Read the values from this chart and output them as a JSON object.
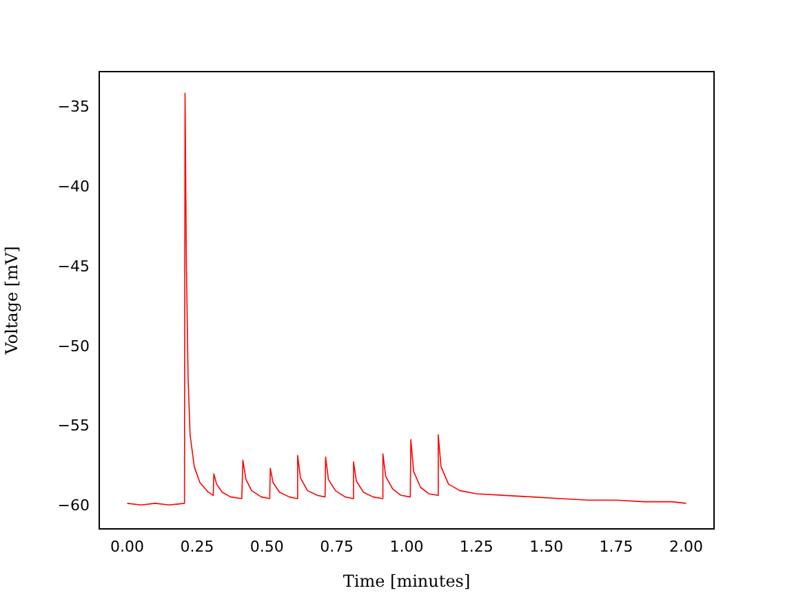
{
  "chart_data": {
    "type": "line",
    "xlabel": "Time [minutes]",
    "ylabel": "Voltage [mV]",
    "x": [
      0.0,
      0.05,
      0.1,
      0.15,
      0.205,
      0.207,
      0.212,
      0.218,
      0.225,
      0.24,
      0.26,
      0.29,
      0.308,
      0.31,
      0.32,
      0.34,
      0.37,
      0.41,
      0.414,
      0.425,
      0.445,
      0.48,
      0.51,
      0.512,
      0.522,
      0.545,
      0.58,
      0.608,
      0.61,
      0.62,
      0.645,
      0.68,
      0.708,
      0.71,
      0.72,
      0.745,
      0.78,
      0.808,
      0.81,
      0.82,
      0.845,
      0.88,
      0.913,
      0.915,
      0.925,
      0.95,
      0.98,
      1.013,
      1.015,
      1.025,
      1.05,
      1.08,
      1.111,
      1.113,
      1.123,
      1.15,
      1.19,
      1.25,
      1.35,
      1.45,
      1.55,
      1.65,
      1.75,
      1.85,
      1.95,
      2.0
    ],
    "series": [
      {
        "color": "#ff0000",
        "values": [
          -59.8,
          -59.9,
          -59.8,
          -59.9,
          -59.8,
          -34.1,
          -45,
          -52,
          -55.5,
          -57.5,
          -58.5,
          -59.1,
          -59.3,
          -57.95,
          -58.6,
          -59.1,
          -59.4,
          -59.5,
          -57.1,
          -58.3,
          -59.0,
          -59.4,
          -59.5,
          -57.6,
          -58.5,
          -59.1,
          -59.4,
          -59.5,
          -56.8,
          -58.2,
          -59.0,
          -59.3,
          -59.4,
          -56.9,
          -58.3,
          -59.0,
          -59.4,
          -59.5,
          -57.2,
          -58.4,
          -59.1,
          -59.4,
          -59.5,
          -56.7,
          -58.1,
          -58.9,
          -59.3,
          -59.4,
          -55.8,
          -57.8,
          -58.8,
          -59.2,
          -59.3,
          -55.5,
          -57.5,
          -58.6,
          -59.0,
          -59.2,
          -59.3,
          -59.4,
          -59.5,
          -59.6,
          -59.6,
          -59.7,
          -59.7,
          -59.8
        ]
      }
    ],
    "xlim": [
      -0.1,
      2.1
    ],
    "xticks": [
      {
        "value": 0,
        "label": "0.00"
      },
      {
        "value": 0.25,
        "label": "0.25"
      },
      {
        "value": 0.5,
        "label": "0.50"
      },
      {
        "value": 0.75,
        "label": "0.75"
      },
      {
        "value": 1,
        "label": "1.00"
      },
      {
        "value": 1.25,
        "label": "1.25"
      },
      {
        "value": 1.5,
        "label": "1.50"
      },
      {
        "value": 1.75,
        "label": "1.75"
      },
      {
        "value": 2,
        "label": "2.00"
      }
    ],
    "ylim": [
      -61.4,
      -32.75
    ],
    "yticks": [
      {
        "value": -60,
        "label": "−60"
      },
      {
        "value": -55,
        "label": "−55"
      },
      {
        "value": -50,
        "label": "−50"
      },
      {
        "value": -45,
        "label": "−45"
      },
      {
        "value": -40,
        "label": "−40"
      },
      {
        "value": -35,
        "label": "−35"
      }
    ],
    "grid": false,
    "legend": false,
    "marker": "none",
    "line_style": "solid"
  }
}
